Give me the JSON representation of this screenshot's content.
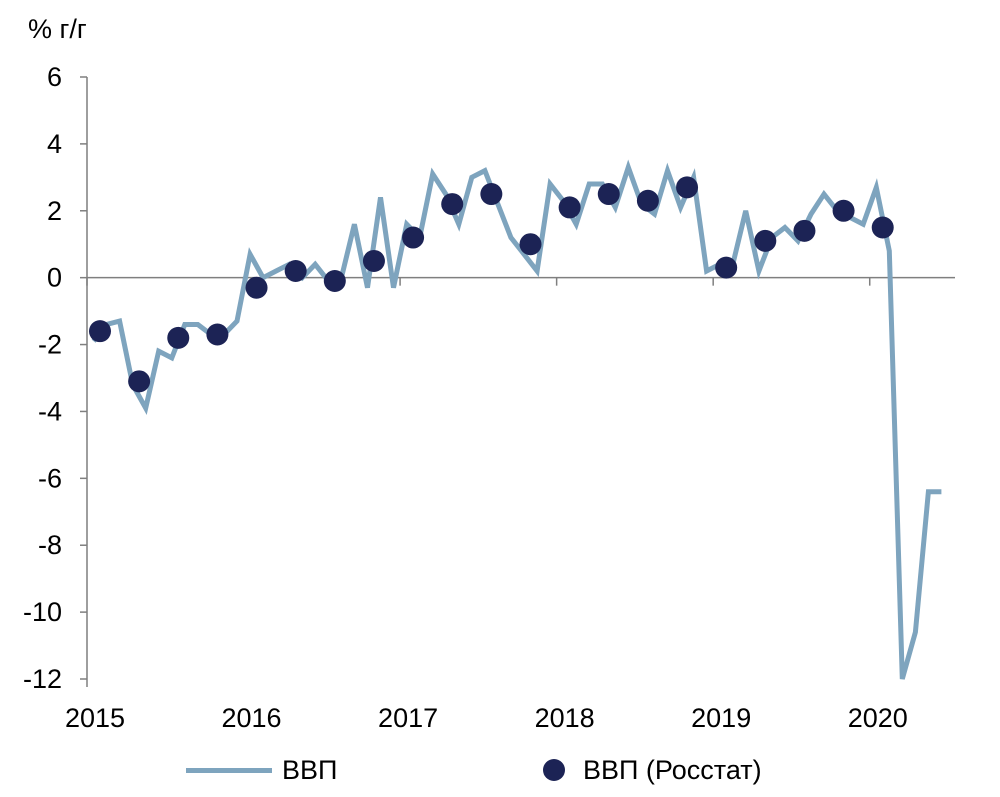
{
  "chart_data": {
    "type": "line",
    "ylabel": "% г/г",
    "ylim": [
      -12,
      6
    ],
    "yticks": [
      6,
      4,
      2,
      0,
      -2,
      -4,
      -6,
      -8,
      -10,
      -12
    ],
    "xlim": [
      2015,
      2020.5
    ],
    "xticks": [
      2015,
      2016,
      2017,
      2018,
      2019,
      2020
    ],
    "colors": {
      "line": "#7ea4be",
      "markers": "#1c2355",
      "axis": "#7f7f7f"
    },
    "series": [
      {
        "name": "ВВП",
        "kind": "line",
        "x": [
          2015.042,
          2015.125,
          2015.208,
          2015.292,
          2015.375,
          2015.458,
          2015.542,
          2015.625,
          2015.708,
          2015.792,
          2015.875,
          2015.958,
          2016.042,
          2016.125,
          2016.208,
          2016.292,
          2016.375,
          2016.458,
          2016.542,
          2016.625,
          2016.708,
          2016.792,
          2016.875,
          2016.958,
          2017.042,
          2017.125,
          2017.208,
          2017.292,
          2017.375,
          2017.458,
          2017.542,
          2017.625,
          2017.708,
          2017.792,
          2017.875,
          2017.958,
          2018.042,
          2018.125,
          2018.208,
          2018.292,
          2018.375,
          2018.458,
          2018.542,
          2018.625,
          2018.708,
          2018.792,
          2018.875,
          2018.958,
          2019.042,
          2019.125,
          2019.208,
          2019.292,
          2019.375,
          2019.458,
          2019.542,
          2019.625,
          2019.708,
          2019.792,
          2019.875,
          2019.958,
          2020.042,
          2020.125,
          2020.208,
          2020.292,
          2020.375,
          2020.458
        ],
        "y": [
          -1.9,
          -1.4,
          -1.3,
          -3.2,
          -3.9,
          -2.2,
          -2.4,
          -1.4,
          -1.4,
          -1.7,
          -1.7,
          -1.3,
          0.7,
          0.0,
          0.2,
          0.4,
          0.0,
          0.4,
          -0.1,
          0.0,
          1.6,
          -0.3,
          2.4,
          -0.3,
          1.6,
          1.2,
          3.1,
          2.5,
          1.6,
          3.0,
          3.2,
          2.2,
          1.2,
          0.7,
          0.2,
          2.8,
          2.3,
          1.6,
          2.8,
          2.8,
          2.1,
          3.3,
          2.2,
          1.9,
          3.2,
          2.1,
          3.0,
          0.2,
          0.4,
          0.4,
          2.0,
          0.2,
          1.2,
          1.5,
          1.1,
          1.9,
          2.5,
          2.0,
          1.8,
          1.6,
          2.7,
          0.8,
          -12.0,
          -10.6,
          -6.4,
          -6.4
        ]
      },
      {
        "name": "ВВП (Росстат)",
        "kind": "markers",
        "x": [
          2015.083,
          2015.333,
          2015.583,
          2015.833,
          2016.083,
          2016.333,
          2016.583,
          2016.833,
          2017.083,
          2017.333,
          2017.583,
          2017.833,
          2018.083,
          2018.333,
          2018.583,
          2018.833,
          2019.083,
          2019.333,
          2019.583,
          2019.833,
          2020.083
        ],
        "y": [
          -1.6,
          -3.1,
          -1.8,
          -1.7,
          -0.3,
          0.2,
          -0.1,
          0.5,
          1.2,
          2.2,
          2.5,
          1.0,
          2.1,
          2.5,
          2.3,
          2.7,
          0.3,
          1.1,
          1.4,
          2.0,
          1.5
        ]
      }
    ]
  }
}
